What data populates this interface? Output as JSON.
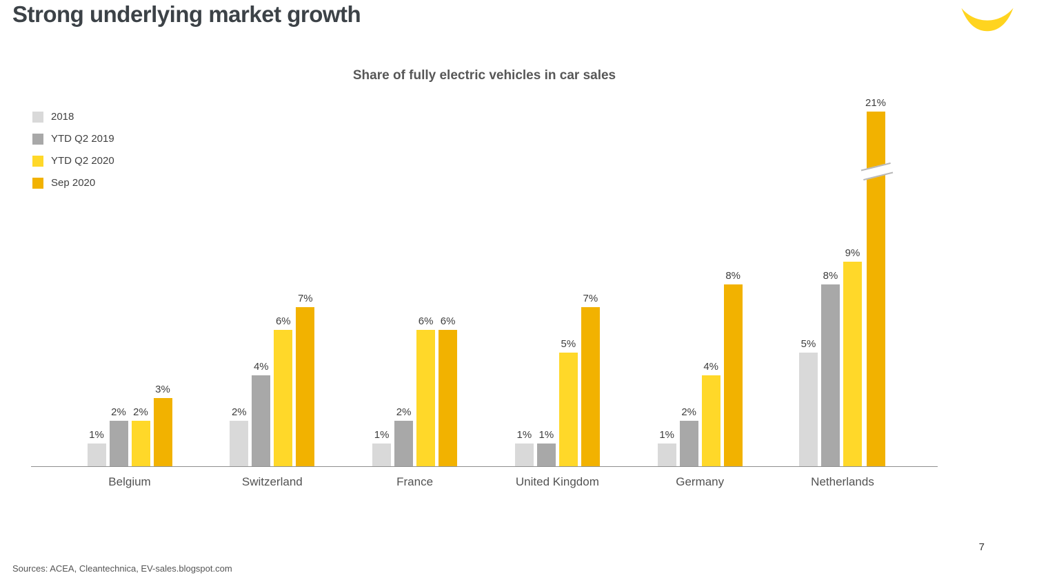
{
  "page": {
    "title": "Strong underlying market growth",
    "page_number": "7",
    "sources": "Sources: ACEA, Cleantechnica, EV-sales.blogspot.com",
    "brand_color": "#ffd41f"
  },
  "chart_data": {
    "type": "bar",
    "title": "Share of fully electric vehicles in car sales",
    "xlabel": "",
    "ylabel": "",
    "grid": false,
    "legend_position": "top-left",
    "value_label_format": "{v}%",
    "categories": [
      "Belgium",
      "Switzerland",
      "France",
      "United Kingdom",
      "Germany",
      "Netherlands"
    ],
    "series": [
      {
        "name": "2018",
        "color": "#d9d9d9",
        "values": [
          1,
          2,
          1,
          1,
          1,
          5
        ]
      },
      {
        "name": "YTD Q2 2019",
        "color": "#a8a8a8",
        "values": [
          2,
          4,
          2,
          1,
          2,
          8
        ]
      },
      {
        "name": "YTD Q2 2020",
        "color": "#ffd829",
        "values": [
          2,
          6,
          6,
          5,
          4,
          9
        ]
      },
      {
        "name": "Sep 2020",
        "color": "#f2b200",
        "values": [
          3,
          7,
          6,
          7,
          8,
          21
        ]
      }
    ],
    "axis_break": {
      "category": "Netherlands",
      "series": "Sep 2020",
      "note": "21% bar is truncated with a diagonal axis-break mark"
    }
  }
}
